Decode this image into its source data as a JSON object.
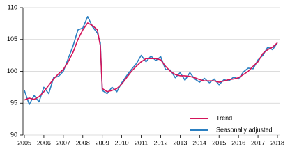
{
  "chart_data": {
    "type": "line",
    "x": [
      2005,
      2005.25,
      2005.5,
      2005.75,
      2006,
      2006.25,
      2006.5,
      2006.75,
      2007,
      2007.25,
      2007.5,
      2007.75,
      2008,
      2008.25,
      2008.5,
      2008.75,
      2008.9,
      2009,
      2009.25,
      2009.5,
      2009.75,
      2010,
      2010.25,
      2010.5,
      2010.75,
      2011,
      2011.25,
      2011.5,
      2011.75,
      2012,
      2012.25,
      2012.5,
      2012.75,
      2013,
      2013.25,
      2013.5,
      2013.75,
      2014,
      2014.25,
      2014.5,
      2014.75,
      2015,
      2015.25,
      2015.5,
      2015.75,
      2016,
      2016.25,
      2016.5,
      2016.75,
      2017,
      2017.25,
      2017.5,
      2017.75,
      2018
    ],
    "series": [
      {
        "name": "Trend",
        "color": "#d4145a",
        "values": [
          95.5,
          95.8,
          95.6,
          96.0,
          96.8,
          97.8,
          98.8,
          99.6,
          100.3,
          101.5,
          103.0,
          105.0,
          106.5,
          107.6,
          107.2,
          106.5,
          104.0,
          97.3,
          96.8,
          97.0,
          97.3,
          98.0,
          99.0,
          100.0,
          100.8,
          101.5,
          102.0,
          102.0,
          102.0,
          101.8,
          100.8,
          100.0,
          99.5,
          99.3,
          99.3,
          99.2,
          99.0,
          98.7,
          98.5,
          98.5,
          98.5,
          98.3,
          98.5,
          98.7,
          98.8,
          99.0,
          99.5,
          100.0,
          100.8,
          101.5,
          102.8,
          103.4,
          103.8,
          104.5
        ]
      },
      {
        "name": "Seasonally adjusted",
        "color": "#2a7fc1",
        "values": [
          97.0,
          94.8,
          96.2,
          95.2,
          97.5,
          96.5,
          99.0,
          99.2,
          100.0,
          102.0,
          104.0,
          106.5,
          106.8,
          108.6,
          107.0,
          106.0,
          104.5,
          97.0,
          96.5,
          97.5,
          96.8,
          98.2,
          99.3,
          100.3,
          101.2,
          102.5,
          101.5,
          102.4,
          101.7,
          102.3,
          100.3,
          100.2,
          99.0,
          99.8,
          98.6,
          99.8,
          98.8,
          98.3,
          98.9,
          98.2,
          98.8,
          97.9,
          98.7,
          98.5,
          99.1,
          98.8,
          99.9,
          100.5,
          100.4,
          101.8,
          102.5,
          103.8,
          103.4,
          104.5
        ]
      }
    ],
    "xlim": [
      2005,
      2018
    ],
    "xticks": [
      2005,
      2006,
      2007,
      2008,
      2009,
      2010,
      2011,
      2012,
      2013,
      2014,
      2015,
      2016,
      2017,
      2018
    ],
    "ylim": [
      90,
      110
    ],
    "yticks": [
      90,
      95,
      100,
      105,
      110
    ],
    "grid": true,
    "legend": "lower right"
  }
}
